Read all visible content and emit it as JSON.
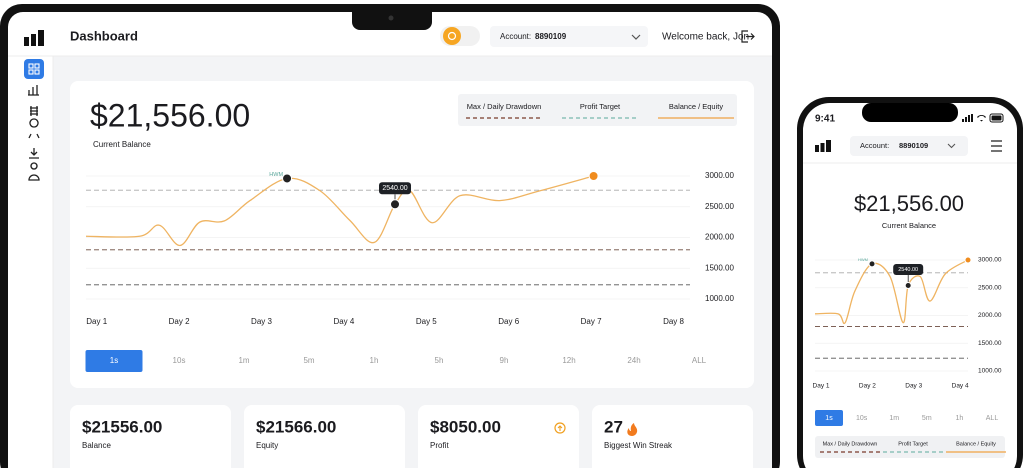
{
  "desktop": {
    "header": {
      "title": "Dashboard",
      "account_label": "Account:",
      "account": "8890109",
      "welcome": "Welcome back, Jon"
    },
    "balance": {
      "value": "$21,556.00",
      "label": "Current Balance"
    },
    "legend": [
      {
        "name": "Max / Daily Drawdown",
        "color": "#7a3b2b",
        "dash": true
      },
      {
        "name": "Profit Target",
        "color": "#79b9ae",
        "dash": true
      },
      {
        "name": "Balance / Equity",
        "color": "#f0a243",
        "dash": false
      }
    ],
    "chart": {
      "type": "line",
      "x": [
        0.87,
        1.52,
        1.76,
        2.01,
        2.25,
        2.55,
        2.86,
        3.31,
        3.71,
        4.07,
        4.37,
        4.62,
        4.8,
        5.07,
        5.41,
        5.89,
        6.38,
        7.03
      ],
      "values": [
        2020,
        2020,
        2200,
        1870,
        2250,
        2270,
        2600,
        2960,
        2760,
        2280,
        1920,
        2540,
        2760,
        2240,
        2680,
        2600,
        2760,
        3000
      ],
      "color": "#efb462",
      "xlim": [
        0.87,
        8.2
      ],
      "ylim": [
        1000,
        3000
      ],
      "xticks": [
        {
          "value": 1,
          "label": "Day 1"
        },
        {
          "value": 2,
          "label": "Day 2"
        },
        {
          "value": 3,
          "label": "Day 3"
        },
        {
          "value": 4,
          "label": "Day 4"
        },
        {
          "value": 5,
          "label": "Day 5"
        },
        {
          "value": 6,
          "label": "Day 6"
        },
        {
          "value": 7,
          "label": "Day 7"
        },
        {
          "value": 8,
          "label": "Day 8"
        }
      ],
      "yticks": [
        {
          "value": 1000,
          "label": "1000.00"
        },
        {
          "value": 1500,
          "label": "1500.00"
        },
        {
          "value": 2000,
          "label": "2000.00"
        },
        {
          "value": 2500,
          "label": "2500.00"
        },
        {
          "value": 3000,
          "label": "3000.00"
        }
      ],
      "grid": true,
      "reference_lines": [
        {
          "value": 2770,
          "color": "#a9a9a9"
        },
        {
          "value": 1800,
          "color": "#6b4a3e"
        },
        {
          "value": 1230,
          "color": "#555555"
        }
      ],
      "points": [
        {
          "x": 3.31,
          "y": 2960,
          "label": "HWM",
          "style": "tag",
          "color": "#222222"
        },
        {
          "x": 4.62,
          "y": 2540,
          "label": "2540.00",
          "style": "tooltip",
          "color": "#222222"
        },
        {
          "x": 7.03,
          "y": 3000,
          "color": "#f08c1e"
        }
      ]
    },
    "timeframes": [
      "1s",
      "10s",
      "1m",
      "5m",
      "1h",
      "5h",
      "9h",
      "12h",
      "24h",
      "ALL"
    ],
    "active_timeframe": 0,
    "stats": [
      {
        "value": "$21556.00",
        "label": "Balance"
      },
      {
        "value": "$21566.00",
        "label": "Equity"
      },
      {
        "value": "$8050.00",
        "label": "Profit"
      },
      {
        "value": "27",
        "label": "Biggest Win Streak"
      }
    ]
  },
  "phone": {
    "time": "9:41",
    "header": {
      "account_label": "Account:",
      "account": "8890109"
    },
    "balance": {
      "value": "$21,556.00",
      "label": "Current Balance"
    },
    "chart": {
      "type": "line",
      "x": [
        0.87,
        1.37,
        1.52,
        1.73,
        2.1,
        2.49,
        2.77,
        2.88,
        3.14,
        3.35,
        3.68,
        4.17
      ],
      "values": [
        2030,
        2030,
        1870,
        2440,
        2930,
        2700,
        1870,
        2540,
        2700,
        2260,
        2750,
        3000
      ],
      "color": "#efb462",
      "xlim": [
        0.87,
        4.17
      ],
      "ylim": [
        1000,
        3000
      ],
      "xticks": [
        {
          "value": 1,
          "label": "Day 1"
        },
        {
          "value": 2,
          "label": "Day 2"
        },
        {
          "value": 3,
          "label": "Day 3"
        },
        {
          "value": 4,
          "label": "Day 4"
        }
      ],
      "yticks": [
        {
          "value": 1000,
          "label": "1000.00"
        },
        {
          "value": 1500,
          "label": "1500.00"
        },
        {
          "value": 2000,
          "label": "2000.00"
        },
        {
          "value": 2500,
          "label": "2500.00"
        },
        {
          "value": 3000,
          "label": "3000.00"
        }
      ],
      "grid": true,
      "reference_lines": [
        {
          "value": 2770,
          "color": "#a9a9a9"
        },
        {
          "value": 1800,
          "color": "#6b4a3e"
        },
        {
          "value": 1230,
          "color": "#555555"
        }
      ],
      "points": [
        {
          "x": 2.1,
          "y": 2930,
          "label": "HWM",
          "style": "tag",
          "color": "#222222"
        },
        {
          "x": 2.88,
          "y": 2540,
          "label": "2540.00",
          "style": "tooltip",
          "color": "#222222"
        },
        {
          "x": 4.17,
          "y": 3000,
          "color": "#f08c1e"
        }
      ]
    },
    "timeframes": [
      "1s",
      "10s",
      "1m",
      "5m",
      "1h",
      "ALL"
    ],
    "active_timeframe": 0,
    "legend": [
      {
        "name": "Max / Daily Drawdown",
        "color": "#7a3b2b",
        "dash": true
      },
      {
        "name": "Profit Target",
        "color": "#79b9ae",
        "dash": true
      },
      {
        "name": "Balance / Equity",
        "color": "#f0a243",
        "dash": false
      }
    ]
  }
}
